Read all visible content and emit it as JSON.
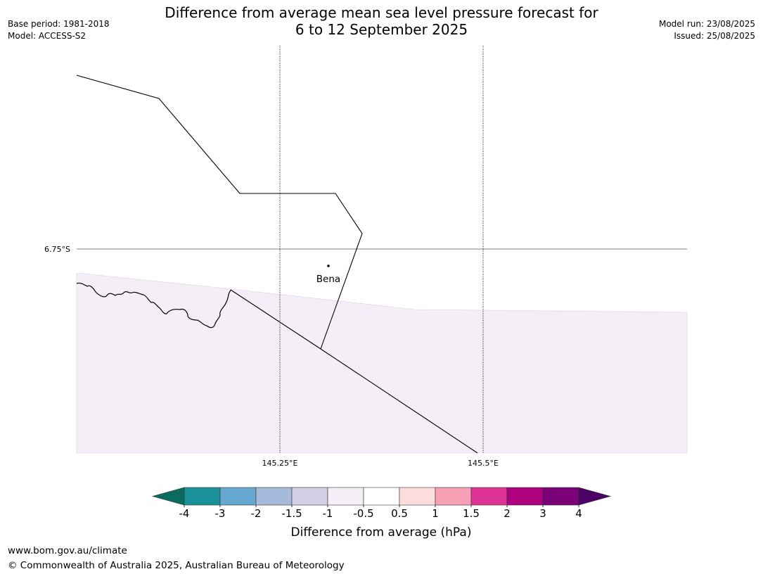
{
  "header": {
    "title_line1": "Difference from average mean sea level pressure forecast for",
    "title_line2": "6 to 12 September 2025",
    "base_period": "Base period: 1981-2018",
    "model": "Model: ACCESS-S2",
    "model_run": "Model run: 23/08/2025",
    "issued": "Issued: 25/08/2025"
  },
  "map": {
    "lat_label": "6.75°S",
    "lon_labels": [
      "145.25°E",
      "145.5°E"
    ],
    "place": "Bena",
    "shaded_category": "-1 to -0.5"
  },
  "colorbar": {
    "label": "Difference from average (hPa)",
    "ticks": [
      "-4",
      "-3",
      "-2",
      "-1.5",
      "-1",
      "-0.5",
      "0.5",
      "1",
      "1.5",
      "2",
      "3",
      "4"
    ],
    "colors": [
      "#0b6b5e",
      "#1a9198",
      "#66a8cf",
      "#a6badc",
      "#d1cfe6",
      "#f4eef7",
      "#ffffff",
      "#fcdddd",
      "#f79fb5",
      "#dd3496",
      "#ad017e",
      "#7a0177",
      "#4b0066"
    ]
  },
  "footer": {
    "url": "www.bom.gov.au/climate",
    "copyright": "© Commonwealth of Australia 2025, Australian Bureau of Meteorology"
  }
}
